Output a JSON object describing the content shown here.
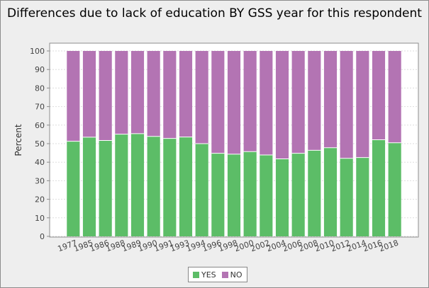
{
  "chart_data": {
    "type": "bar",
    "stacked": true,
    "title": "Differences due to lack of education BY GSS year for this respondent",
    "xlabel": "",
    "ylabel": "Percent",
    "ylim": [
      0,
      100
    ],
    "yticks": [
      0,
      10,
      20,
      30,
      40,
      50,
      60,
      70,
      80,
      90,
      100
    ],
    "grid": true,
    "legend_position": "bottom",
    "categories": [
      "1977",
      "1985",
      "1986",
      "1988",
      "1989",
      "1990",
      "1991",
      "1993",
      "1994",
      "1996",
      "1998",
      "2000",
      "2002",
      "2004",
      "2006",
      "2008",
      "2010",
      "2012",
      "2014",
      "2016",
      "2018"
    ],
    "series": [
      {
        "name": "YES",
        "color": "#5cbd67",
        "values": [
          51.3,
          53.5,
          51.7,
          55.1,
          55.4,
          53.9,
          52.8,
          53.6,
          50.0,
          44.8,
          44.3,
          45.7,
          43.9,
          41.8,
          44.8,
          46.4,
          47.8,
          42.1,
          42.5,
          52.1,
          50.5
        ]
      },
      {
        "name": "NO",
        "color": "#b374b3",
        "values": [
          48.7,
          46.5,
          48.3,
          44.9,
          44.6,
          46.1,
          47.2,
          46.4,
          50.0,
          55.2,
          55.7,
          54.3,
          56.1,
          58.2,
          55.2,
          53.6,
          52.2,
          57.9,
          57.5,
          47.9,
          49.5
        ]
      }
    ]
  }
}
